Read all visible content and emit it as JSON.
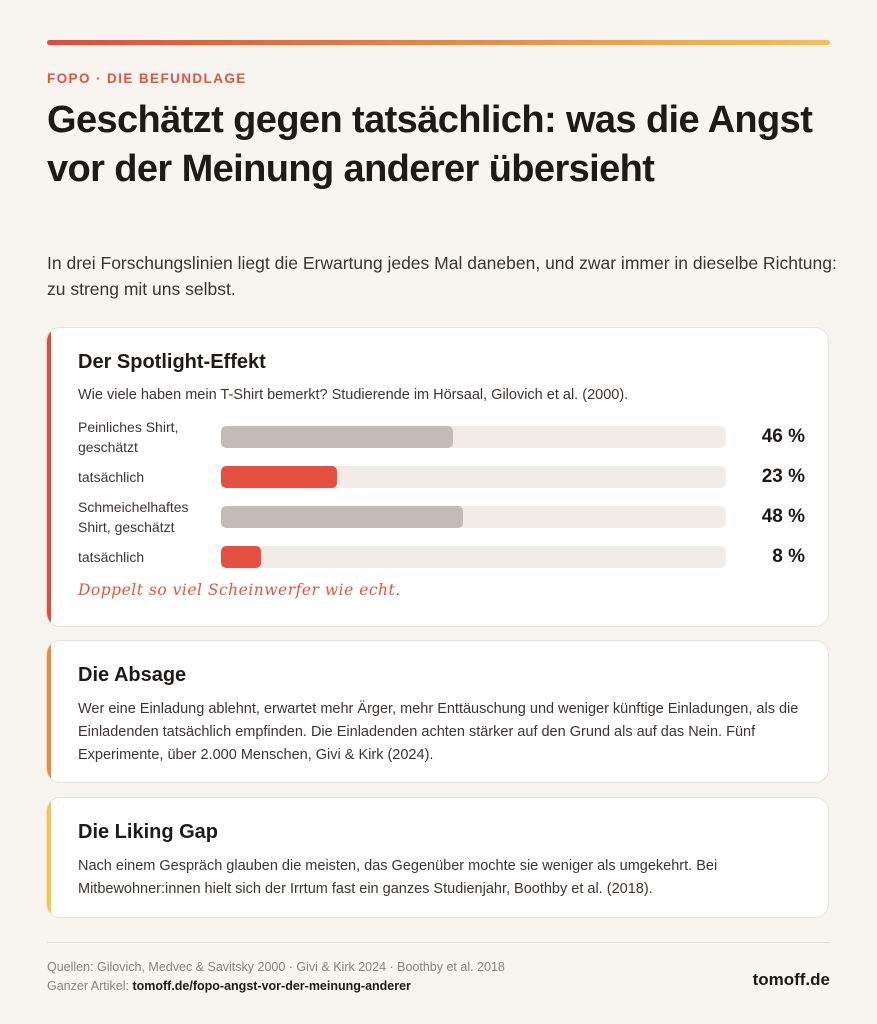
{
  "header": {
    "eyebrow": "FOPO · DIE BEFUNDLAGE",
    "title": "Geschätzt gegen tatsächlich: was die Angst vor der Meinung anderer übersieht",
    "subtitle": "In drei Forschungslinien liegt die Erwartung jedes Mal daneben, und zwar immer in dieselbe Richtung: zu streng mit uns selbst."
  },
  "colors": {
    "estimated": "#c3bbb4",
    "actual": "#e64e3f",
    "track": "#f1ece7",
    "accent_red": "#e64a3d",
    "accent_orange": "#f08a3a",
    "accent_yellow": "#f5c744"
  },
  "cards": [
    {
      "title": "Der Spotlight-Effekt",
      "description": "Wie viele haben mein T-Shirt bemerkt? Studierende im Hörsaal, Gilovich et al. (2000).",
      "note": "Doppelt so viel Scheinwerfer wie echt."
    },
    {
      "title": "Die Absage",
      "description": "Wer eine Einladung ablehnt, erwartet mehr Ärger, mehr Enttäuschung und weniger künftige Einladungen, als die Einladenden tatsächlich empfinden. Die Einladenden achten stärker auf den Grund als auf das Nein. Fünf Experimente, über 2.000 Menschen, Givi & Kirk (2024)."
    },
    {
      "title": "Die Liking Gap",
      "description": "Nach einem Gespräch glauben die meisten, das Gegenüber mochte sie weniger als umgekehrt. Bei Mitbewohner:innen hielt sich der Irrtum fast ein ganzes Studienjahr, Boothby et al. (2018)."
    }
  ],
  "chart_data": {
    "type": "bar",
    "orientation": "horizontal",
    "categories": [
      "Peinliches Shirt, geschätzt",
      "tatsächlich",
      "Schmeichelhaftes Shirt, geschätzt",
      "tatsächlich"
    ],
    "values": [
      46,
      23,
      48,
      8
    ],
    "value_labels": [
      "46 %",
      "23 %",
      "48 %",
      "8 %"
    ],
    "kinds": [
      "estimated",
      "actual",
      "estimated",
      "actual"
    ],
    "xlim": [
      0,
      100
    ],
    "unit": "%"
  },
  "footer": {
    "sources": "Quellen: Gilovich, Medvec & Savitsky 2000 · Givi & Kirk 2024 · Boothby et al. 2018",
    "article_prefix": "Ganzer Artikel: ",
    "article_link": "tomoff.de/fopo-angst-vor-der-meinung-anderer",
    "brand": "tomoff.de"
  }
}
